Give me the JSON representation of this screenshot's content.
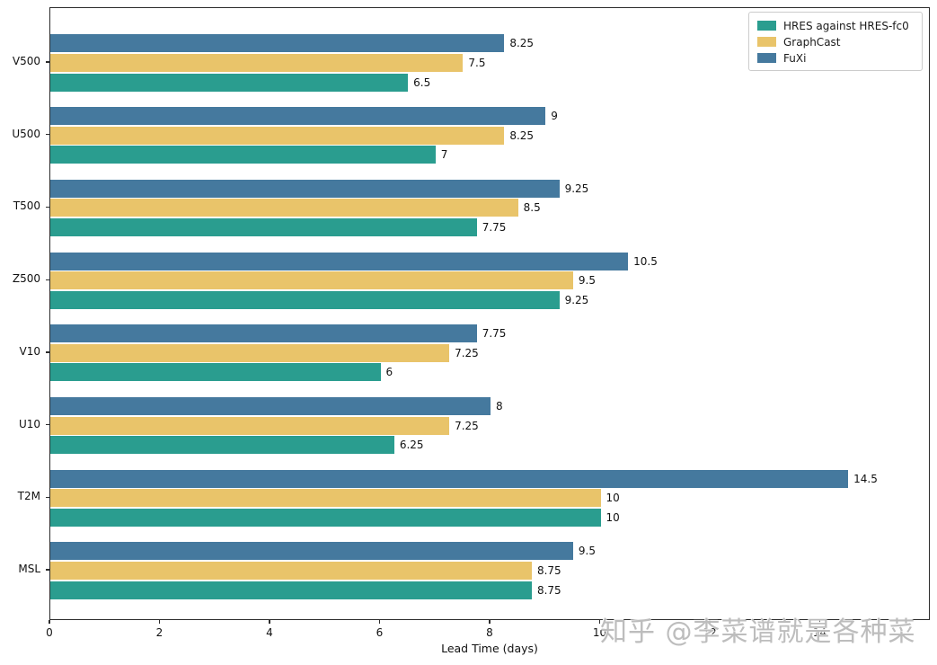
{
  "watermark": "知乎 @李菜谱就是各种菜",
  "chart_data": {
    "type": "bar",
    "orientation": "horizontal",
    "title": "",
    "xlabel": "Lead Time (days)",
    "ylabel": "",
    "xlim": [
      0,
      16
    ],
    "xticks": [
      0,
      2,
      4,
      6,
      8,
      10,
      12,
      14
    ],
    "grid": false,
    "legend_position": "upper right",
    "bar_order_top_to_bottom_within_group": [
      "FuXi",
      "GraphCast",
      "HRES against HRES-fc0"
    ],
    "categories": [
      "V500",
      "U500",
      "T500",
      "Z500",
      "V10",
      "U10",
      "T2M",
      "MSL"
    ],
    "series": [
      {
        "name": "HRES against HRES-fc0",
        "color": "#2a9d8f",
        "values": [
          6.5,
          7,
          7.75,
          9.25,
          6,
          6.25,
          10,
          8.75
        ]
      },
      {
        "name": "GraphCast",
        "color": "#e9c46a",
        "values": [
          7.5,
          8.25,
          8.5,
          9.5,
          7.25,
          7.25,
          10,
          8.75
        ]
      },
      {
        "name": "FuXi",
        "color": "#45799e",
        "values": [
          8.25,
          9,
          9.25,
          10.5,
          7.75,
          8,
          14.5,
          9.5
        ]
      }
    ]
  }
}
